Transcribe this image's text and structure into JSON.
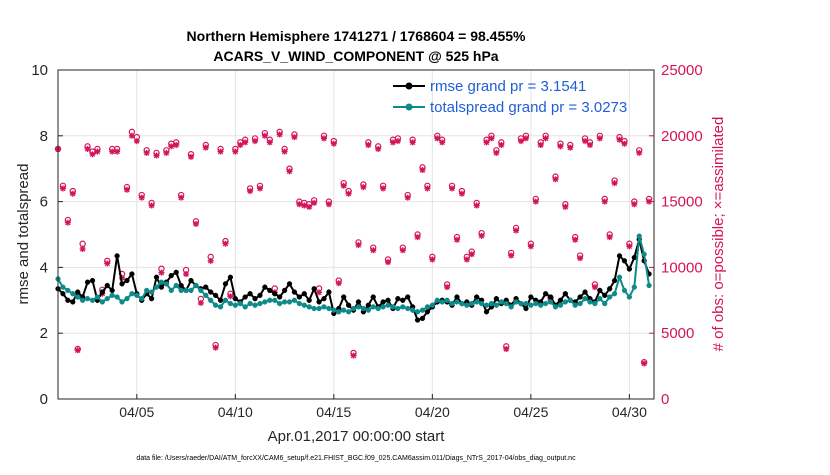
{
  "chart_data": {
    "type": "line",
    "title_line1": "Northern Hemisphere 1741271 / 1768604 = 98.455%",
    "title_line2": "ACARS_V_WIND_COMPONENT @ 525 hPa",
    "xlabel": "Apr.01,2017 00:00:00 start",
    "ylabel_left": "rmse and totalspread",
    "ylabel_right": "# of obs: o=possible; ×=assimilated",
    "footer": "data file: /Users/raeder/DAI/ATM_forcXX/CAM6_setup/f.e21.FHIST_BGC.f09_025.CAM6assim.011/Diags_NTrS_2017-04/obs_diag_output.nc",
    "xlim": [
      1,
      31.25
    ],
    "ylim_left": [
      0,
      10
    ],
    "ylim_right": [
      0,
      25000
    ],
    "x_ticks": [
      {
        "value": 5,
        "label": "04/05"
      },
      {
        "value": 10,
        "label": "04/10"
      },
      {
        "value": 15,
        "label": "04/15"
      },
      {
        "value": 20,
        "label": "04/20"
      },
      {
        "value": 25,
        "label": "04/25"
      },
      {
        "value": 30,
        "label": "04/30"
      }
    ],
    "y_left_ticks": [
      "0",
      "2",
      "4",
      "6",
      "8",
      "10"
    ],
    "y_right_ticks": [
      "0",
      "5000",
      "10000",
      "15000",
      "20000",
      "25000"
    ],
    "legend": [
      {
        "label": "rmse grand pr = 3.1541",
        "color": "#000000"
      },
      {
        "label": "totalspread grand pr = 3.0273",
        "color": "#0f8a8a"
      }
    ],
    "colors": {
      "rmse": "#000000",
      "spread": "#0f8a8a",
      "obs": "#d4145a",
      "legend_text": "#1f5fd6"
    },
    "x": [
      1.0,
      1.25,
      1.5,
      1.75,
      2.0,
      2.25,
      2.5,
      2.75,
      3.0,
      3.25,
      3.5,
      3.75,
      4.0,
      4.25,
      4.5,
      4.75,
      5.0,
      5.25,
      5.5,
      5.75,
      6.0,
      6.25,
      6.5,
      6.75,
      7.0,
      7.25,
      7.5,
      7.75,
      8.0,
      8.25,
      8.5,
      8.75,
      9.0,
      9.25,
      9.5,
      9.75,
      10.0,
      10.25,
      10.5,
      10.75,
      11.0,
      11.25,
      11.5,
      11.75,
      12.0,
      12.25,
      12.5,
      12.75,
      13.0,
      13.25,
      13.5,
      13.75,
      14.0,
      14.25,
      14.5,
      14.75,
      15.0,
      15.25,
      15.5,
      15.75,
      16.0,
      16.25,
      16.5,
      16.75,
      17.0,
      17.25,
      17.5,
      17.75,
      18.0,
      18.25,
      18.5,
      18.75,
      19.0,
      19.25,
      19.5,
      19.75,
      20.0,
      20.25,
      20.5,
      20.75,
      21.0,
      21.25,
      21.5,
      21.75,
      22.0,
      22.25,
      22.5,
      22.75,
      23.0,
      23.25,
      23.5,
      23.75,
      24.0,
      24.25,
      24.5,
      24.75,
      25.0,
      25.25,
      25.5,
      25.75,
      26.0,
      26.25,
      26.5,
      26.75,
      27.0,
      27.25,
      27.5,
      27.75,
      28.0,
      28.25,
      28.5,
      28.75,
      29.0,
      29.25,
      29.5,
      29.75,
      30.0,
      30.25,
      30.5,
      30.75,
      31.0
    ],
    "rmse": [
      3.35,
      3.2,
      3.0,
      2.95,
      3.25,
      3.1,
      3.55,
      3.6,
      3.0,
      3.25,
      3.45,
      3.3,
      4.35,
      3.5,
      3.6,
      3.8,
      3.2,
      3.0,
      3.2,
      3.05,
      3.7,
      3.4,
      3.55,
      3.75,
      3.85,
      3.45,
      3.3,
      3.6,
      3.45,
      3.35,
      3.4,
      3.25,
      3.15,
      3.0,
      3.5,
      3.7,
      3.05,
      2.95,
      3.1,
      3.2,
      3.05,
      3.15,
      3.4,
      3.3,
      3.2,
      3.1,
      3.3,
      3.5,
      3.25,
      3.1,
      3.2,
      3.0,
      3.35,
      2.95,
      3.05,
      3.25,
      2.6,
      2.75,
      3.1,
      2.85,
      2.7,
      2.95,
      2.65,
      2.85,
      3.1,
      2.8,
      2.95,
      3.0,
      2.75,
      3.05,
      3.0,
      3.1,
      2.8,
      2.4,
      2.45,
      2.65,
      2.8,
      2.95,
      3.0,
      2.95,
      2.85,
      3.1,
      2.9,
      2.95,
      2.85,
      3.1,
      3.0,
      2.65,
      2.8,
      3.05,
      2.9,
      3.0,
      2.85,
      3.05,
      2.9,
      2.75,
      3.1,
      3.0,
      2.95,
      3.2,
      3.1,
      2.85,
      3.0,
      3.2,
      3.0,
      2.95,
      3.1,
      3.25,
      3.05,
      2.95,
      3.3,
      3.15,
      3.35,
      3.6,
      4.35,
      4.2,
      3.95,
      4.3,
      4.85,
      4.2,
      3.8
    ],
    "spread": [
      3.65,
      3.4,
      3.3,
      3.2,
      3.1,
      3.0,
      3.05,
      3.0,
      3.1,
      2.95,
      3.05,
      3.15,
      3.1,
      2.95,
      3.05,
      3.2,
      3.15,
      3.05,
      3.3,
      3.25,
      3.4,
      3.55,
      3.5,
      3.3,
      3.45,
      3.3,
      3.3,
      3.3,
      3.45,
      3.3,
      3.15,
      3.0,
      2.85,
      2.8,
      3.0,
      2.9,
      2.85,
      2.9,
      2.8,
      2.9,
      2.85,
      2.9,
      2.95,
      3.0,
      3.0,
      2.9,
      2.95,
      2.95,
      3.0,
      2.9,
      2.85,
      2.8,
      2.75,
      2.75,
      2.8,
      2.75,
      2.7,
      2.65,
      2.7,
      2.65,
      2.75,
      2.8,
      2.75,
      2.7,
      2.8,
      2.75,
      2.8,
      2.85,
      2.8,
      2.75,
      2.8,
      2.75,
      2.7,
      2.65,
      2.7,
      2.8,
      2.85,
      3.0,
      2.95,
      3.0,
      2.9,
      2.95,
      2.9,
      2.85,
      2.9,
      2.95,
      2.9,
      2.85,
      2.9,
      2.85,
      2.95,
      2.9,
      2.8,
      2.95,
      2.9,
      2.9,
      2.85,
      2.9,
      2.85,
      2.9,
      2.95,
      2.8,
      2.85,
      2.95,
      3.0,
      2.85,
      2.9,
      3.05,
      2.95,
      2.9,
      3.05,
      2.9,
      3.1,
      3.2,
      3.7,
      3.3,
      3.1,
      3.4,
      4.95,
      4.4,
      3.45
    ],
    "obs_possible": [
      19000,
      16200,
      13600,
      15800,
      3800,
      11800,
      19200,
      18800,
      19000,
      8300,
      10500,
      19000,
      19000,
      9500,
      16100,
      20300,
      19900,
      15500,
      18900,
      14900,
      18700,
      9900,
      18900,
      19400,
      19500,
      15500,
      9800,
      18600,
      13500,
      7600,
      19300,
      10800,
      4100,
      19000,
      12000,
      8000,
      19000,
      19500,
      19700,
      16000,
      19800,
      16200,
      20200,
      19700,
      8400,
      20300,
      19000,
      17500,
      20100,
      15000,
      14900,
      14800,
      15100,
      8400,
      20000,
      15000,
      19600,
      9000,
      16400,
      15800,
      3500,
      11900,
      16300,
      19500,
      11500,
      19200,
      16200,
      10600,
      19700,
      19800,
      11500,
      15500,
      19700,
      12500,
      17600,
      16200,
      10800,
      20000,
      19700,
      8700,
      16200,
      12300,
      15800,
      10800,
      11200,
      14900,
      12600,
      19700,
      20000,
      18900,
      19500,
      4000,
      11100,
      13000,
      19800,
      20000,
      11800,
      15200,
      19500,
      20000,
      7700,
      16900,
      19400,
      14800,
      19300,
      12300,
      10900,
      19800,
      19500,
      8700,
      20000,
      15200,
      12500,
      16600,
      19900,
      19600,
      11800,
      15000,
      18900,
      2800,
      15200,
      19300
    ],
    "obs_assimilated": [
      19000,
      16000,
      13400,
      15600,
      3700,
      11400,
      19000,
      18600,
      18800,
      8000,
      10300,
      18800,
      18800,
      9200,
      15900,
      20000,
      19600,
      15300,
      18700,
      14700,
      18500,
      9600,
      18700,
      19200,
      19300,
      15300,
      9500,
      18400,
      13300,
      7300,
      19100,
      10500,
      3900,
      18800,
      11800,
      7800,
      18800,
      19300,
      19500,
      15800,
      19600,
      16000,
      20000,
      19500,
      8100,
      20100,
      18800,
      17300,
      19900,
      14800,
      14700,
      14600,
      14900,
      8100,
      19800,
      14800,
      19400,
      8800,
      16200,
      15600,
      3300,
      11700,
      16100,
      19300,
      11300,
      19000,
      16000,
      10400,
      19500,
      19600,
      11300,
      15300,
      19500,
      12300,
      17400,
      16000,
      10600,
      19800,
      19500,
      8500,
      16000,
      12100,
      15600,
      10600,
      11000,
      14700,
      12400,
      19500,
      19800,
      18700,
      19300,
      3800,
      10900,
      12800,
      19600,
      19800,
      11600,
      15000,
      19300,
      19800,
      7500,
      16700,
      19200,
      14600,
      19100,
      12100,
      10700,
      19600,
      19300,
      8500,
      19800,
      15000,
      12300,
      16400,
      19700,
      19400,
      11600,
      14800,
      18700,
      2700,
      15000,
      19100
    ]
  }
}
